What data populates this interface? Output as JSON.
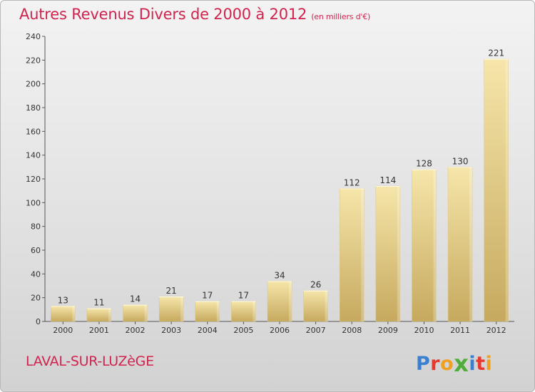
{
  "header": {
    "title": "Autres Revenus Divers de 2000 à 2012",
    "subtitle": "(en milliers d'€)"
  },
  "footer": {
    "town": "LAVAL-SUR-LUZèGE",
    "logo_letters": [
      "P",
      "r",
      "o",
      "x",
      "i",
      "t",
      "i"
    ],
    "logo_colors": [
      "#3a7fd0",
      "#e8392f",
      "#f0a020",
      "#4fae3a",
      "#3a7fd0",
      "#e8392f",
      "#f0a020"
    ]
  },
  "colors": {
    "accent": "#d0234e",
    "bar_light": "#f5e3a4",
    "bar_dark": "#c9ad63",
    "axis": "#555555"
  },
  "chart_data": {
    "type": "bar",
    "title": "Autres Revenus Divers de 2000 à 2012",
    "subtitle": "(en milliers d'€)",
    "categories": [
      "2000",
      "2001",
      "2002",
      "2003",
      "2004",
      "2005",
      "2006",
      "2007",
      "2008",
      "2009",
      "2010",
      "2011",
      "2012"
    ],
    "values": [
      13,
      11,
      14,
      21,
      17,
      17,
      34,
      26,
      112,
      114,
      128,
      130,
      221
    ],
    "ylim": [
      0,
      240
    ],
    "yticks": [
      0,
      20,
      40,
      60,
      80,
      100,
      120,
      140,
      160,
      180,
      200,
      220,
      240
    ],
    "xlabel": "",
    "ylabel": "",
    "grid": false,
    "legend": "none"
  }
}
